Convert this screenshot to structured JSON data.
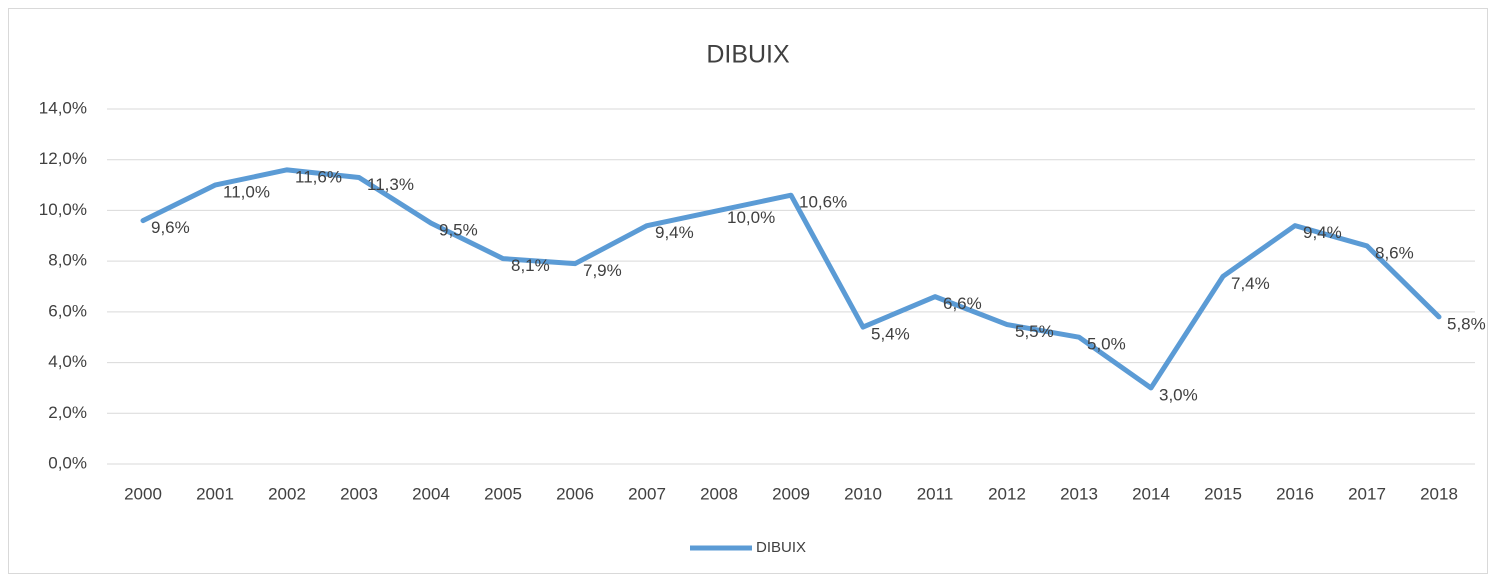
{
  "chart_data": {
    "type": "line",
    "title": "DIBUIX",
    "categories": [
      "2000",
      "2001",
      "2002",
      "2003",
      "2004",
      "2005",
      "2006",
      "2007",
      "2008",
      "2009",
      "2010",
      "2011",
      "2012",
      "2013",
      "2014",
      "2015",
      "2016",
      "2017",
      "2018"
    ],
    "series": [
      {
        "name": "DIBUIX",
        "color": "#5b9bd5",
        "values": [
          9.6,
          11.0,
          11.6,
          11.3,
          9.5,
          8.1,
          7.9,
          9.4,
          10.0,
          10.6,
          5.4,
          6.6,
          5.5,
          5.0,
          3.0,
          7.4,
          9.4,
          8.6,
          5.8
        ],
        "value_labels": [
          "9,6%",
          "11,0%",
          "11,6%",
          "11,3%",
          "9,5%",
          "8,1%",
          "7,9%",
          "9,4%",
          "10,0%",
          "10,6%",
          "5,4%",
          "6,6%",
          "5,5%",
          "5,0%",
          "3,0%",
          "7,4%",
          "9,4%",
          "8,6%",
          "5,8%"
        ]
      }
    ],
    "ylim": [
      0,
      14
    ],
    "yticks": [
      {
        "value": 0,
        "label": "0,0%"
      },
      {
        "value": 2,
        "label": "2,0%"
      },
      {
        "value": 4,
        "label": "4,0%"
      },
      {
        "value": 6,
        "label": "6,0%"
      },
      {
        "value": 8,
        "label": "8,0%"
      },
      {
        "value": 10,
        "label": "10,0%"
      },
      {
        "value": 12,
        "label": "12,0%"
      },
      {
        "value": 14,
        "label": "14,0%"
      }
    ],
    "grid": true,
    "legend": "bottom"
  }
}
